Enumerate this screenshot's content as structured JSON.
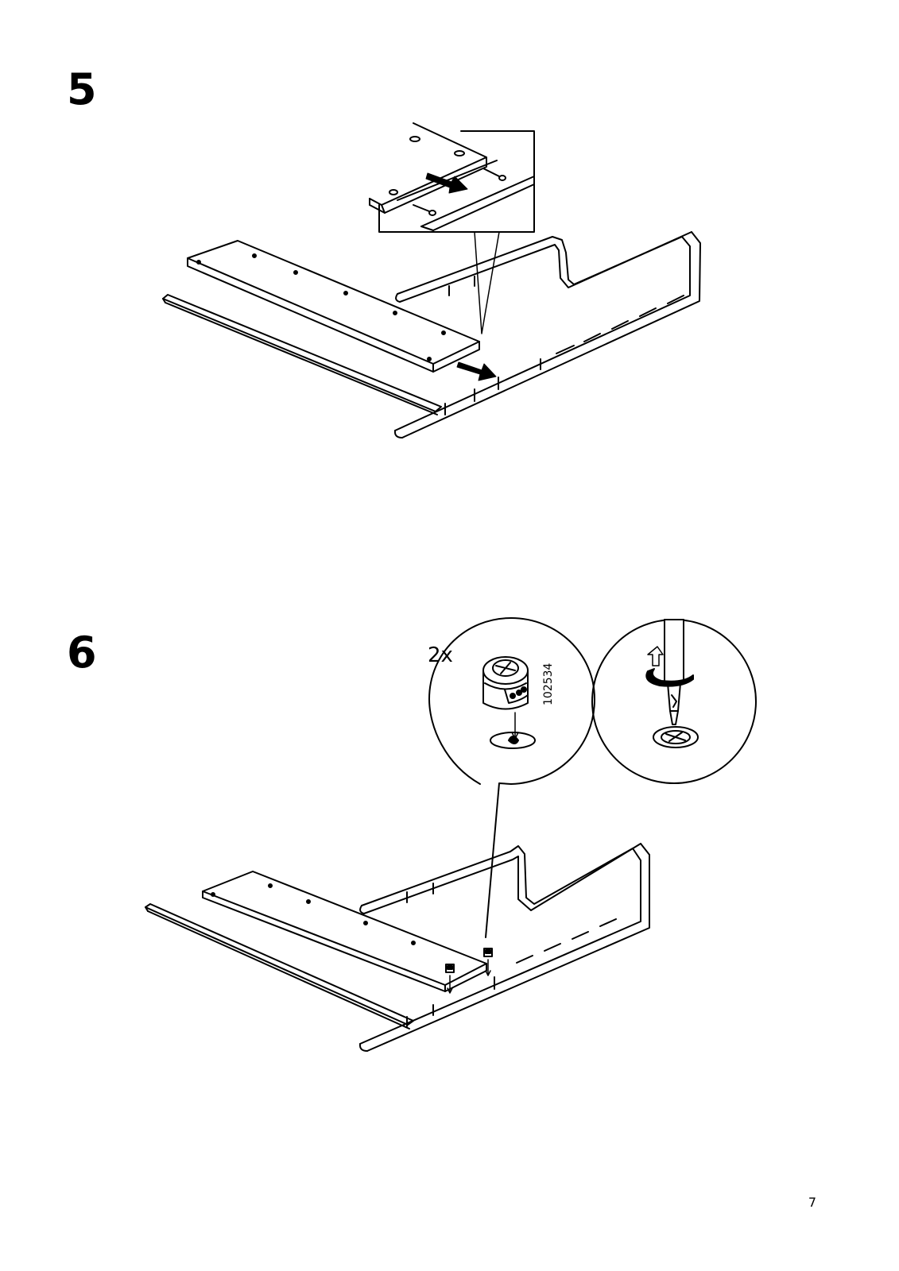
{
  "steps": [
    {
      "number": "5"
    },
    {
      "number": "6",
      "quantity_label": "2x",
      "part_number": "102534"
    }
  ],
  "page_number": "7"
}
